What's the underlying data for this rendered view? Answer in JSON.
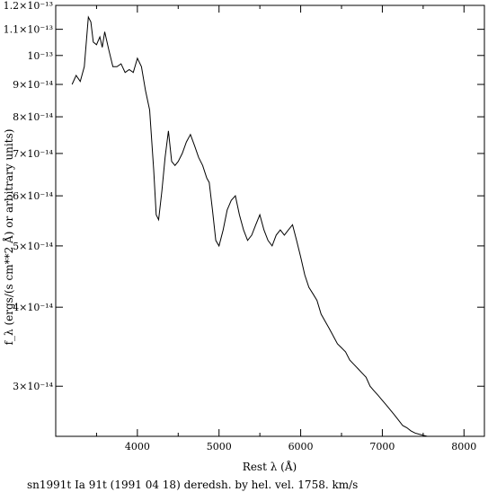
{
  "chart_data": {
    "type": "line",
    "xlabel": "Rest λ (Å)",
    "ylabel": "f_λ (ergs/(s cm**2 Å) or arbitrary units)",
    "caption": "sn1991t Ia 91t (1991 04 18) deredsh. by hel. vel.  1758. km/s",
    "y_scale": "log",
    "xlim": [
      3000,
      8250
    ],
    "ylim": [
      2.5e-14,
      1.2e-13
    ],
    "x_ticks": [
      {
        "value": 4000,
        "label": "4000"
      },
      {
        "value": 5000,
        "label": "5000"
      },
      {
        "value": 6000,
        "label": "6000"
      },
      {
        "value": 7000,
        "label": "7000"
      },
      {
        "value": 8000,
        "label": "8000"
      }
    ],
    "y_ticks": [
      {
        "value": 1.2e-13,
        "label": "1.2×10⁻¹³"
      },
      {
        "value": 1.1e-13,
        "label": "1.1×10⁻¹³"
      },
      {
        "value": 1e-13,
        "label": "10⁻¹³"
      },
      {
        "value": 9e-14,
        "label": "9×10⁻¹⁴"
      },
      {
        "value": 8e-14,
        "label": "8×10⁻¹⁴"
      },
      {
        "value": 7e-14,
        "label": "7×10⁻¹⁴"
      },
      {
        "value": 6e-14,
        "label": "6×10⁻¹⁴"
      },
      {
        "value": 5e-14,
        "label": "5×10⁻¹⁴"
      },
      {
        "value": 4e-14,
        "label": "4×10⁻¹⁴"
      },
      {
        "value": 3e-14,
        "label": "3×10⁻¹⁴"
      }
    ],
    "series": [
      {
        "x": [
          3200,
          3250,
          3300,
          3350,
          3400,
          3430,
          3460,
          3500,
          3540,
          3570,
          3600,
          3650,
          3700,
          3750,
          3800,
          3850,
          3900,
          3950,
          4000,
          4050,
          4100,
          4150,
          4200,
          4230,
          4260,
          4300,
          4340,
          4380,
          4420,
          4460,
          4500,
          4550,
          4600,
          4650,
          4700,
          4750,
          4800,
          4850,
          4880,
          4920,
          4960,
          5000,
          5050,
          5100,
          5150,
          5200,
          5250,
          5300,
          5350,
          5400,
          5450,
          5500,
          5550,
          5600,
          5650,
          5700,
          5750,
          5800,
          5850,
          5900,
          5950,
          6000,
          6050,
          6100,
          6150,
          6200,
          6250,
          6300,
          6350,
          6400,
          6450,
          6500,
          6550,
          6600,
          6650,
          6700,
          6750,
          6800,
          6850,
          6900,
          6950,
          7000,
          7050,
          7100,
          7150,
          7200,
          7250,
          7300,
          7350,
          7400,
          7450,
          7500,
          7550,
          7600,
          7650,
          7700,
          7750,
          7800,
          7850,
          7900,
          7950,
          8000
        ],
        "y": [
          9e-14,
          9.3e-14,
          9.1e-14,
          9.6e-14,
          1.15e-13,
          1.13e-13,
          1.05e-13,
          1.04e-13,
          1.07e-13,
          1.03e-13,
          1.09e-13,
          1.02e-13,
          9.6e-14,
          9.6e-14,
          9.7e-14,
          9.4e-14,
          9.5e-14,
          9.4e-14,
          9.9e-14,
          9.6e-14,
          8.8e-14,
          8.2e-14,
          6.6e-14,
          5.6e-14,
          5.5e-14,
          6.1e-14,
          6.9e-14,
          7.6e-14,
          6.8e-14,
          6.7e-14,
          6.8e-14,
          7e-14,
          7.3e-14,
          7.5e-14,
          7.2e-14,
          6.9e-14,
          6.7e-14,
          6.4e-14,
          6.3e-14,
          5.7e-14,
          5.1e-14,
          5e-14,
          5.3e-14,
          5.7e-14,
          5.9e-14,
          6e-14,
          5.6e-14,
          5.3e-14,
          5.1e-14,
          5.2e-14,
          5.4e-14,
          5.6e-14,
          5.3e-14,
          5.1e-14,
          5e-14,
          5.2e-14,
          5.3e-14,
          5.2e-14,
          5.3e-14,
          5.4e-14,
          5.1e-14,
          4.8e-14,
          4.5e-14,
          4.3e-14,
          4.2e-14,
          4.1e-14,
          3.9e-14,
          3.8e-14,
          3.7e-14,
          3.6e-14,
          3.5e-14,
          3.45e-14,
          3.4e-14,
          3.3e-14,
          3.25e-14,
          3.2e-14,
          3.15e-14,
          3.1e-14,
          3e-14,
          2.95e-14,
          2.9e-14,
          2.85e-14,
          2.8e-14,
          2.75e-14,
          2.7e-14,
          2.65e-14,
          2.6e-14,
          2.58e-14,
          2.55e-14,
          2.53e-14,
          2.52e-14,
          2.51e-14,
          2.5e-14,
          2.5e-14,
          2.5e-14,
          2.5e-14,
          2.5e-14,
          2.5e-14,
          2.5e-14,
          2.5e-14,
          2.5e-14,
          2.5e-14
        ]
      }
    ]
  }
}
